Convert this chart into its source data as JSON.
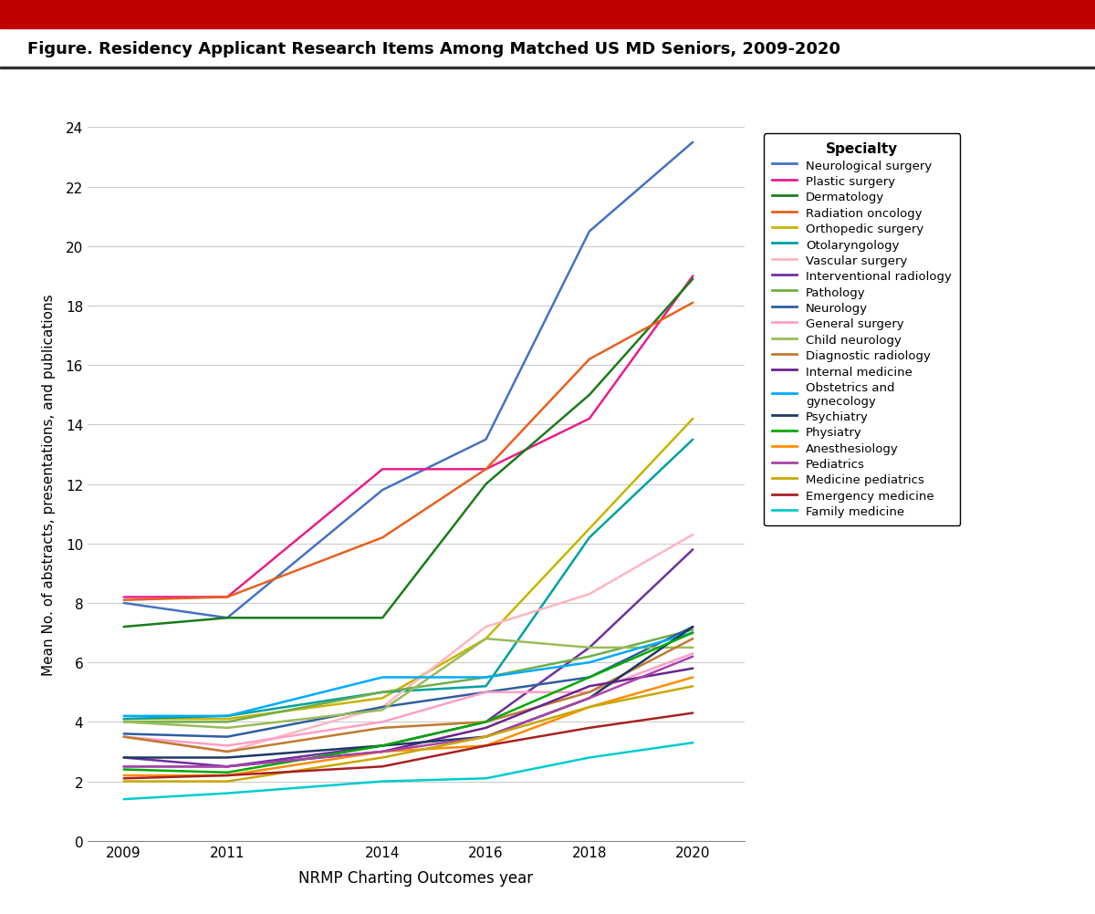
{
  "title": "Figure. Residency Applicant Research Items Among Matched US MD Seniors, 2009-2020",
  "xlabel": "NRMP Charting Outcomes year",
  "ylabel": "Mean No. of abstracts, presentations, and publications",
  "years": [
    2009,
    2011,
    2014,
    2016,
    2018,
    2020
  ],
  "specialties": [
    {
      "name": "Neurological surgery",
      "color": "#4472C4",
      "values": [
        8.0,
        7.5,
        11.8,
        13.5,
        20.5,
        23.5
      ]
    },
    {
      "name": "Plastic surgery",
      "color": "#E91E8C",
      "values": [
        8.2,
        8.2,
        12.5,
        12.5,
        14.2,
        19.0
      ]
    },
    {
      "name": "Dermatology",
      "color": "#1A7C1A",
      "values": [
        7.2,
        7.5,
        7.5,
        12.0,
        15.0,
        18.9
      ]
    },
    {
      "name": "Radiation oncology",
      "color": "#E8601C",
      "values": [
        8.1,
        8.2,
        10.2,
        12.5,
        16.2,
        18.1
      ]
    },
    {
      "name": "Orthopedic surgery",
      "color": "#C8B400",
      "values": [
        4.1,
        4.1,
        4.8,
        6.8,
        10.5,
        14.2
      ]
    },
    {
      "name": "Otolaryngology",
      "color": "#00A0A0",
      "values": [
        4.1,
        4.2,
        5.0,
        5.2,
        10.2,
        13.5
      ]
    },
    {
      "name": "Vascular surgery",
      "color": "#FFB6C1",
      "values": [
        3.5,
        3.0,
        4.5,
        7.2,
        8.3,
        10.3
      ]
    },
    {
      "name": "Interventional radiology",
      "color": "#7030A0",
      "values": [
        2.8,
        2.5,
        3.2,
        4.0,
        6.5,
        9.8
      ]
    },
    {
      "name": "Pathology",
      "color": "#70AD47",
      "values": [
        4.0,
        4.0,
        5.0,
        5.5,
        6.2,
        7.1
      ]
    },
    {
      "name": "Neurology",
      "color": "#2E5EA0",
      "values": [
        3.6,
        3.5,
        4.5,
        5.0,
        5.5,
        7.2
      ]
    },
    {
      "name": "General surgery",
      "color": "#FF9FC6",
      "values": [
        3.5,
        3.2,
        4.0,
        5.0,
        5.0,
        6.3
      ]
    },
    {
      "name": "Child neurology",
      "color": "#9BBB59",
      "values": [
        4.0,
        3.8,
        4.4,
        6.8,
        6.5,
        6.5
      ]
    },
    {
      "name": "Diagnostic radiology",
      "color": "#C07A30",
      "values": [
        3.5,
        3.0,
        3.8,
        4.0,
        5.0,
        6.8
      ]
    },
    {
      "name": "Internal medicine",
      "color": "#6B238E",
      "values": [
        2.5,
        2.5,
        3.0,
        3.8,
        5.2,
        5.8
      ]
    },
    {
      "name": "Obstetrics and\ngynecology",
      "color": "#00AAFF",
      "values": [
        4.2,
        4.2,
        5.5,
        5.5,
        6.0,
        7.0
      ]
    },
    {
      "name": "Psychiatry",
      "color": "#1F3864",
      "values": [
        2.8,
        2.8,
        3.2,
        3.5,
        4.8,
        7.2
      ]
    },
    {
      "name": "Physiatry",
      "color": "#00AA00",
      "values": [
        2.4,
        2.3,
        3.2,
        4.0,
        5.5,
        7.0
      ]
    },
    {
      "name": "Anesthesiology",
      "color": "#FF8C00",
      "values": [
        2.2,
        2.2,
        3.0,
        3.2,
        4.5,
        5.5
      ]
    },
    {
      "name": "Pediatrics",
      "color": "#AA44AA",
      "values": [
        2.5,
        2.5,
        3.0,
        3.5,
        4.8,
        6.2
      ]
    },
    {
      "name": "Medicine pediatrics",
      "color": "#C8A800",
      "values": [
        2.0,
        2.0,
        2.8,
        3.5,
        4.5,
        5.2
      ]
    },
    {
      "name": "Emergency medicine",
      "color": "#AA2020",
      "values": [
        2.1,
        2.2,
        2.5,
        3.2,
        3.8,
        4.3
      ]
    },
    {
      "name": "Family medicine",
      "color": "#00CCCC",
      "values": [
        1.4,
        1.6,
        2.0,
        2.1,
        2.8,
        3.3
      ]
    }
  ],
  "ylim": [
    0,
    24
  ],
  "yticks": [
    0,
    2,
    4,
    6,
    8,
    10,
    12,
    14,
    16,
    18,
    20,
    22,
    24
  ],
  "background_color": "#FFFFFF",
  "grid_color": "#CCCCCC",
  "title_bar_color": "#C00000",
  "title_line_color": "#333333",
  "legend_title": "Specialty"
}
